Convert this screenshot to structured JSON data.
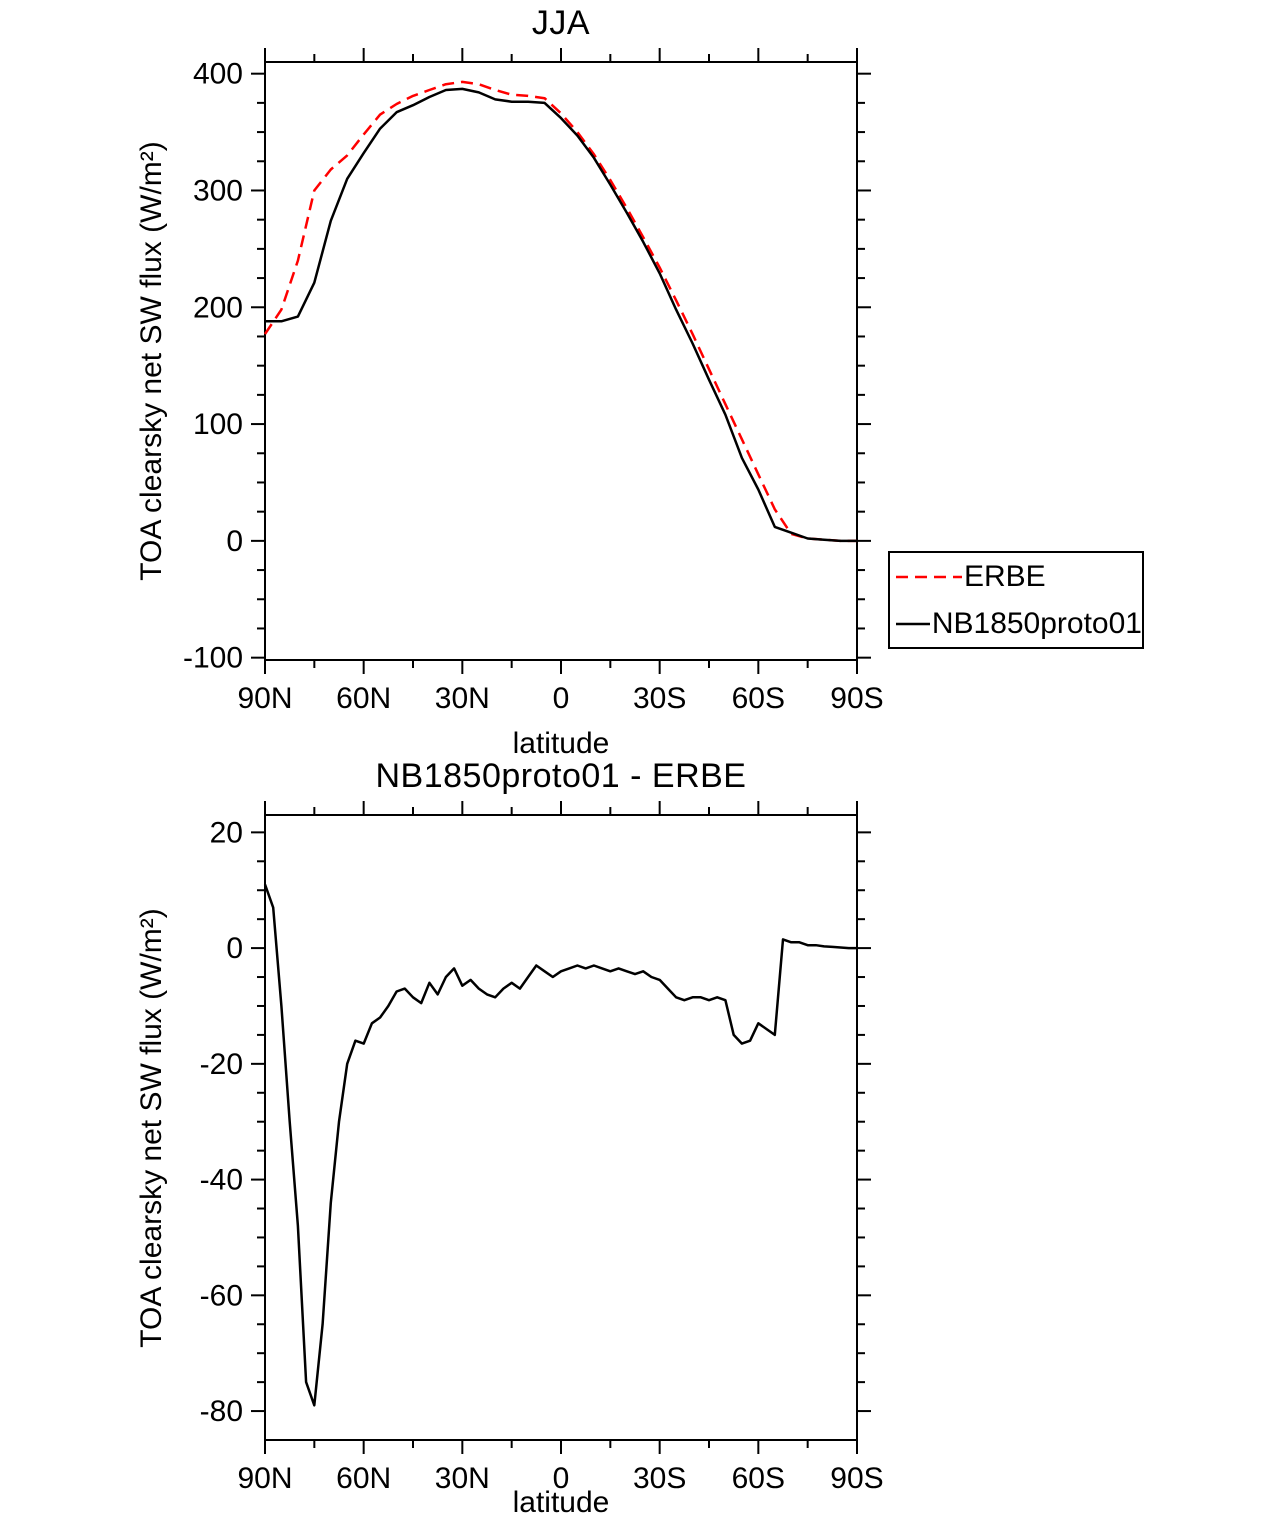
{
  "figure": {
    "background": "#ffffff",
    "frame_color": "#000000"
  },
  "chart_data": [
    {
      "type": "line",
      "title": "JJA",
      "xlabel": "latitude",
      "ylabel": "TOA clearsky net SW flux (W/m²)",
      "xlim": [
        90,
        -90
      ],
      "ylim": [
        -102,
        410
      ],
      "grid": false,
      "legend_position": "outside-bottom-right",
      "xticks": {
        "major": [
          90,
          60,
          30,
          0,
          -30,
          -60,
          -90
        ],
        "labels": [
          "90N",
          "60N",
          "30N",
          "0",
          "30S",
          "60S",
          "90S"
        ],
        "minor_step": 15
      },
      "yticks": {
        "major": [
          -100,
          0,
          100,
          200,
          300,
          400
        ],
        "labels": [
          "-100",
          "0",
          "100",
          "200",
          "300",
          "400"
        ],
        "minor_step": 25
      },
      "x": [
        90,
        85,
        80,
        75,
        70,
        65,
        60,
        55,
        50,
        45,
        40,
        35,
        30,
        25,
        20,
        15,
        10,
        5,
        0,
        -5,
        -10,
        -15,
        -20,
        -25,
        -30,
        -35,
        -40,
        -45,
        -50,
        -55,
        -60,
        -65,
        -70,
        -75,
        -80,
        -85,
        -90
      ],
      "series": [
        {
          "name": "ERBE",
          "color": "#ff0000",
          "dash": "12 7",
          "width": 2.5,
          "values": [
            177,
            198,
            240,
            300,
            318,
            330,
            348,
            365,
            374,
            381,
            386,
            391,
            393,
            391,
            386,
            382,
            381,
            379,
            366,
            350,
            331,
            309,
            285,
            260,
            234,
            206,
            177,
            147,
            117,
            87,
            57,
            27,
            6,
            2,
            1,
            0,
            0
          ]
        },
        {
          "name": "NB1850proto01",
          "color": "#000000",
          "dash": "",
          "width": 2.5,
          "values": [
            188,
            188,
            192,
            221,
            274,
            310,
            332,
            353,
            367,
            373,
            380,
            386,
            387,
            384,
            378,
            376,
            376,
            375,
            362,
            347,
            328,
            305,
            281,
            256,
            229,
            198,
            169,
            138,
            108,
            71,
            44,
            12,
            7,
            2,
            1,
            0,
            0
          ]
        }
      ]
    },
    {
      "type": "line",
      "title": "NB1850proto01 - ERBE",
      "xlabel": "latitude",
      "ylabel": "TOA clearsky net SW flux (W/m²)",
      "xlim": [
        90,
        -90
      ],
      "ylim": [
        -85,
        23
      ],
      "grid": false,
      "xticks": {
        "major": [
          90,
          60,
          30,
          0,
          -30,
          -60,
          -90
        ],
        "labels": [
          "90N",
          "60N",
          "30N",
          "0",
          "30S",
          "60S",
          "90S"
        ],
        "minor_step": 15
      },
      "yticks": {
        "major": [
          -80,
          -60,
          -40,
          -20,
          0,
          20
        ],
        "labels": [
          "-80",
          "-60",
          "-40",
          "-20",
          "0",
          "20"
        ],
        "minor_step": 5
      },
      "x": [
        90,
        87.5,
        85,
        82.5,
        80,
        77.5,
        75,
        72.5,
        70,
        67.5,
        65,
        62.5,
        60,
        57.5,
        55,
        52.5,
        50,
        47.5,
        45,
        42.5,
        40,
        37.5,
        35,
        32.5,
        30,
        27.5,
        25,
        22.5,
        20,
        17.5,
        15,
        12.5,
        10,
        7.5,
        5,
        2.5,
        0,
        -2.5,
        -5,
        -7.5,
        -10,
        -12.5,
        -15,
        -17.5,
        -20,
        -22.5,
        -25,
        -27.5,
        -30,
        -32.5,
        -35,
        -37.5,
        -40,
        -42.5,
        -45,
        -47.5,
        -50,
        -52.5,
        -55,
        -57.5,
        -60,
        -62.5,
        -65,
        -67.5,
        -70,
        -72.5,
        -75,
        -77.5,
        -80,
        -82.5,
        -85,
        -87.5,
        -90
      ],
      "series": [
        {
          "name": "NB1850proto01 - ERBE",
          "color": "#000000",
          "dash": "",
          "width": 2.5,
          "values": [
            11,
            7,
            -10,
            -30,
            -48,
            -75,
            -79,
            -65,
            -44,
            -30,
            -20,
            -16,
            -16.5,
            -13,
            -12,
            -10,
            -7.5,
            -7,
            -8.5,
            -9.5,
            -6,
            -8,
            -5,
            -3.5,
            -6.5,
            -5.5,
            -7,
            -8,
            -8.5,
            -7,
            -6,
            -7,
            -5,
            -3,
            -4,
            -5,
            -4,
            -3.5,
            -3,
            -3.5,
            -3,
            -3.5,
            -4,
            -3.5,
            -4,
            -4.5,
            -4,
            -5,
            -5.5,
            -7,
            -8.5,
            -9,
            -8.5,
            -8.5,
            -9,
            -8.5,
            -9,
            -15,
            -16.5,
            -16,
            -13,
            -14,
            -15,
            1.5,
            1,
            1,
            0.5,
            0.5,
            0.3,
            0.2,
            0.1,
            0,
            0
          ]
        }
      ]
    }
  ],
  "legend": {
    "entries": [
      "ERBE",
      "NB1850proto01"
    ]
  }
}
